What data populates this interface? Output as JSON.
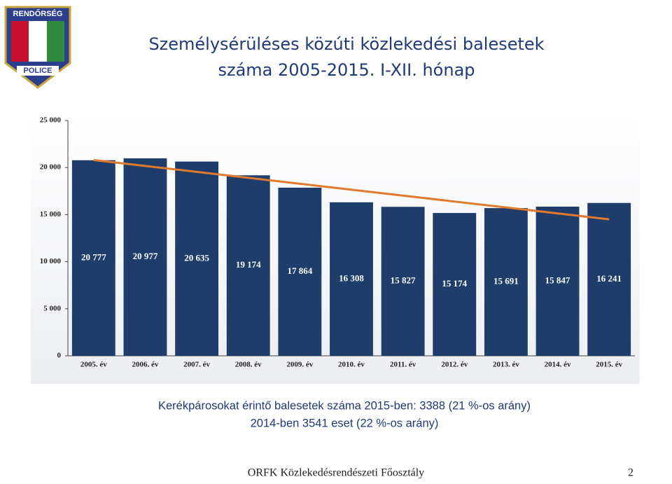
{
  "logo": {
    "top": "RENDŐRSÉG",
    "bottom": "POLICE"
  },
  "header": {
    "title": [
      "Személysérüléses közúti közlekedési balesetek",
      "száma 2005-2015. I-XII. hónap"
    ]
  },
  "chart_data": {
    "type": "bar",
    "categories": [
      "2005. év",
      "2006. év",
      "2007. év",
      "2008. év",
      "2009. év",
      "2010. év",
      "2011. év",
      "2012. év",
      "2013. év",
      "2014. év",
      "2015. év"
    ],
    "values": [
      20777,
      20977,
      20635,
      19174,
      17864,
      16308,
      15827,
      15174,
      15691,
      15847,
      16241
    ],
    "value_labels": [
      "20 777",
      "20 977",
      "20 635",
      "19 174",
      "17 864",
      "16 308",
      "15 827",
      "15 174",
      "15 691",
      "15 847",
      "16 241"
    ],
    "color": "#1f3d6b",
    "ylim": [
      0,
      25000
    ],
    "yticks": [
      0,
      {
        "value": 5000,
        "label": "5 000"
      },
      {
        "value": 10000,
        "label": "10 000"
      },
      {
        "value": 15000,
        "label": "15 000"
      },
      {
        "value": 20000,
        "label": "20 000"
      },
      {
        "value": 25000,
        "label": "25 000"
      }
    ],
    "grid": false,
    "trendline": {
      "color": "#e07a2e",
      "values": [
        20800,
        14500
      ]
    }
  },
  "note": [
    "Kerékpárosokat érintő balesetek száma 2015-ben: 3388  (21 %-os arány)",
    "2014-ben 3541 eset (22 %-os arány)"
  ],
  "footer": {
    "text": "ORFK Közlekedésrendészeti Főosztály",
    "page": "2"
  }
}
